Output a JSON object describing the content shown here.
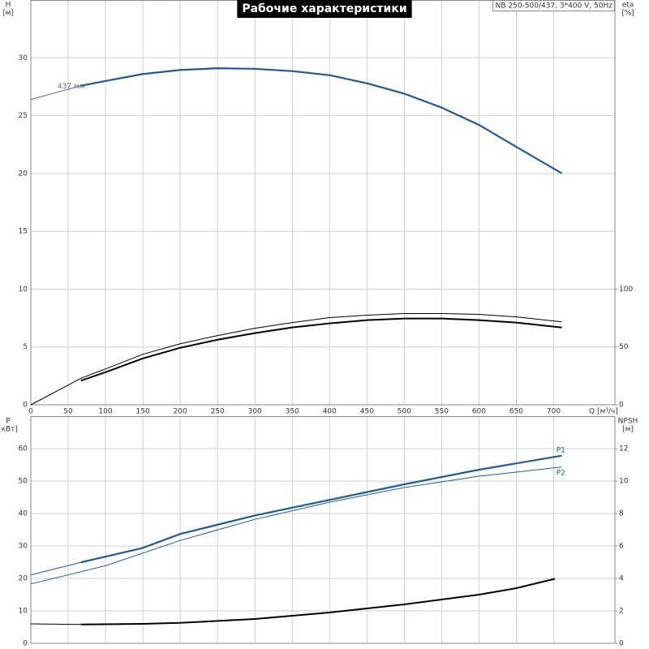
{
  "chart_data": [
    {
      "type": "line",
      "title": "Рабочие характеристики",
      "subtitle": "NB 250-500/437, 3*400 V, 50Hz",
      "x_label": "Q [м³/ч]",
      "y_label": "H",
      "y_unit": "[м]",
      "y2_label": "eta",
      "y2_unit": "[%]",
      "xlim": [
        0,
        782
      ],
      "xticks": [
        0,
        50,
        100,
        150,
        200,
        250,
        300,
        350,
        400,
        450,
        500,
        550,
        600,
        650,
        700
      ],
      "ylim": [
        0,
        35
      ],
      "yticks": [
        0,
        5,
        10,
        15,
        20,
        25,
        30
      ],
      "y2lim": [
        0,
        350
      ],
      "y2ticks": [
        0,
        50,
        100
      ],
      "grid": true,
      "show_xtick_labels": true,
      "series": [
        {
          "name": "437 мм",
          "color": "#5b6f8c",
          "line_width": 1,
          "x": [
            0,
            68
          ],
          "values": [
            26.4,
            27.6
          ]
        },
        {
          "color": "#1f5a99",
          "line_width": 2.2,
          "x": [
            68,
            100,
            150,
            200,
            250,
            300,
            350,
            400,
            450,
            500,
            550,
            600,
            650,
            710
          ],
          "values": [
            27.6,
            28.0,
            28.6,
            28.95,
            29.1,
            29.05,
            28.85,
            28.5,
            27.8,
            26.9,
            25.7,
            24.2,
            22.3,
            20.05
          ]
        },
        {
          "axis": "y2",
          "color": "#000000",
          "line_width": 1,
          "x": [
            0,
            68,
            100,
            150,
            200,
            250,
            300,
            350,
            400,
            450,
            500,
            550,
            600,
            650,
            710
          ],
          "values": [
            0,
            23.2,
            31,
            43.7,
            52.8,
            59.9,
            66.2,
            71.1,
            75.4,
            77.5,
            78.9,
            78.9,
            78.2,
            76,
            71.8
          ]
        },
        {
          "axis": "y2",
          "color": "#000000",
          "line_width": 2,
          "x": [
            68,
            100,
            150,
            200,
            250,
            300,
            350,
            400,
            450,
            500,
            550,
            600,
            650,
            710
          ],
          "values": [
            21.1,
            28.2,
            40.1,
            49.3,
            56.3,
            62,
            66.9,
            70.4,
            73.2,
            74.6,
            74.6,
            73.2,
            71.1,
            66.9
          ]
        }
      ]
    },
    {
      "type": "line",
      "y_label": "P",
      "y_unit": "[кВт]",
      "y2_label": "NPSH",
      "y2_unit": "[м]",
      "xlim": [
        0,
        782
      ],
      "xticks": [
        0,
        50,
        100,
        150,
        200,
        250,
        300,
        350,
        400,
        450,
        500,
        550,
        600,
        650,
        700
      ],
      "ylim": [
        0,
        70
      ],
      "yticks": [
        0,
        10,
        20,
        30,
        40,
        50,
        60
      ],
      "y2lim": [
        0,
        14
      ],
      "y2ticks": [
        0,
        2,
        4,
        6,
        8,
        10,
        12
      ],
      "grid": true,
      "show_xtick_labels": false,
      "series": [
        {
          "color": "#1f5a99",
          "line_width": 1,
          "x": [
            0,
            68
          ],
          "values": [
            21.1,
            25.0
          ]
        },
        {
          "name": "P1",
          "color": "#1f5a99",
          "line_width": 2.2,
          "x": [
            68,
            150,
            200,
            300,
            400,
            500,
            600,
            710
          ],
          "values": [
            25.0,
            29.4,
            33.7,
            39.4,
            44.2,
            49.0,
            53.5,
            57.8
          ]
        },
        {
          "name": "P2",
          "color": "#1f5a99",
          "line_width": 1,
          "x": [
            0,
            100,
            200,
            300,
            400,
            500,
            600,
            710
          ],
          "values": [
            18.3,
            23.9,
            31.7,
            38.2,
            43.5,
            48.0,
            51.5,
            54.3
          ]
        },
        {
          "axis": "y2",
          "color": "#000000",
          "line_width": 1,
          "x": [
            0,
            68
          ],
          "values": [
            1.2,
            1.16
          ]
        },
        {
          "axis": "y2",
          "color": "#000000",
          "line_width": 2,
          "x": [
            68,
            150,
            200,
            300,
            400,
            500,
            600,
            650,
            701
          ],
          "values": [
            1.16,
            1.2,
            1.26,
            1.5,
            1.9,
            2.4,
            3.0,
            3.4,
            3.97
          ]
        }
      ]
    }
  ]
}
